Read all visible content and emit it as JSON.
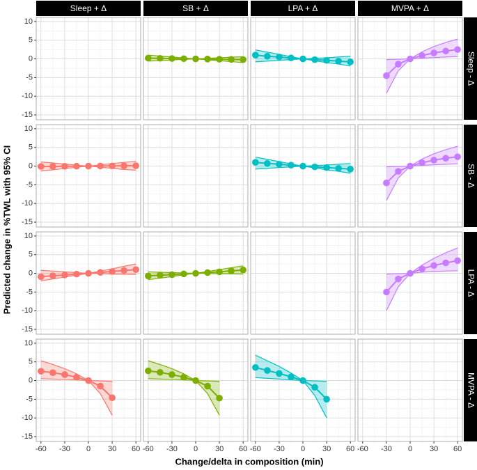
{
  "chart_data": {
    "type": "line",
    "xlabel": "Change/delta in composition (min)",
    "ylabel": "Predicted change in %TWL with 95% CI",
    "columns": [
      "Sleep + Δ",
      "SB + Δ",
      "LPA + Δ",
      "MVPA + Δ"
    ],
    "rows": [
      "Sleep - Δ",
      "SB - Δ",
      "LPA - Δ",
      "MVPA - Δ"
    ],
    "xlim": [
      -66,
      66
    ],
    "ylim": [
      -16.3,
      11.1
    ],
    "xticks": [
      -60,
      -30,
      0,
      30,
      60
    ],
    "yticks": [
      10,
      5,
      0,
      -5,
      -10,
      -15
    ],
    "grid": true,
    "panels": [
      null,
      {
        "color": "#7CAE00",
        "x": [
          -60,
          -45,
          -30,
          -15,
          0,
          15,
          30,
          45,
          60
        ],
        "values": [
          0.2,
          0.15,
          0.1,
          0.05,
          0,
          -0.05,
          -0.1,
          -0.15,
          -0.2
        ],
        "lower": [
          -0.6,
          -0.45,
          -0.3,
          -0.15,
          0,
          -0.25,
          -0.5,
          -0.75,
          -1.0
        ],
        "upper": [
          1.0,
          0.75,
          0.5,
          0.25,
          0,
          0.15,
          0.3,
          0.45,
          0.6
        ]
      },
      {
        "color": "#00BFC4",
        "x": [
          -60,
          -45,
          -30,
          -15,
          0,
          15,
          30,
          45,
          60
        ],
        "values": [
          1.0,
          0.7,
          0.5,
          0.25,
          0,
          -0.2,
          -0.4,
          -0.6,
          -0.8
        ],
        "lower": [
          -0.8,
          -0.6,
          -0.4,
          -0.2,
          0,
          -0.5,
          -1.0,
          -1.4,
          -1.9
        ],
        "upper": [
          2.4,
          1.8,
          1.2,
          0.6,
          0,
          0.15,
          0.3,
          0.5,
          0.7
        ]
      },
      {
        "color": "#C77CFF",
        "x": [
          -30,
          -15,
          0,
          15,
          30,
          45,
          60
        ],
        "values": [
          -4.5,
          -1.4,
          0,
          0.9,
          1.6,
          2.1,
          2.5
        ],
        "lower": [
          -9.2,
          -3.2,
          0,
          0.2,
          0.35,
          0.5,
          0.6
        ],
        "upper": [
          -0.2,
          -0.1,
          0,
          1.9,
          3.3,
          4.4,
          5.3
        ]
      },
      {
        "color": "#F8766D",
        "x": [
          -60,
          -45,
          -30,
          -15,
          0,
          15,
          30,
          45,
          60
        ],
        "values": [
          -0.1,
          -0.08,
          -0.05,
          -0.03,
          0,
          0.03,
          0.05,
          0.08,
          0.1
        ],
        "lower": [
          -1.3,
          -1.0,
          -0.65,
          -0.3,
          0,
          -0.3,
          -0.6,
          -0.9,
          -1.1
        ],
        "upper": [
          1.1,
          0.85,
          0.55,
          0.25,
          0,
          0.35,
          0.7,
          1.0,
          1.3
        ]
      },
      null,
      {
        "color": "#00BFC4",
        "x": [
          -60,
          -45,
          -30,
          -15,
          0,
          15,
          30,
          45,
          60
        ],
        "values": [
          1.0,
          0.7,
          0.5,
          0.25,
          0,
          -0.2,
          -0.4,
          -0.6,
          -0.8
        ],
        "lower": [
          -0.8,
          -0.6,
          -0.4,
          -0.2,
          0,
          -0.5,
          -1.0,
          -1.4,
          -1.9
        ],
        "upper": [
          2.4,
          1.8,
          1.2,
          0.6,
          0,
          0.15,
          0.3,
          0.5,
          0.7
        ]
      },
      {
        "color": "#C77CFF",
        "x": [
          -30,
          -15,
          0,
          15,
          30,
          45,
          60
        ],
        "values": [
          -4.5,
          -1.4,
          0,
          0.9,
          1.6,
          2.1,
          2.5
        ],
        "lower": [
          -9.2,
          -3.2,
          0,
          0.2,
          0.35,
          0.5,
          0.6
        ],
        "upper": [
          -0.2,
          -0.1,
          0,
          1.9,
          3.3,
          4.4,
          5.3
        ]
      },
      {
        "color": "#F8766D",
        "x": [
          -60,
          -45,
          -30,
          -15,
          0,
          15,
          30,
          45,
          60
        ],
        "values": [
          -0.9,
          -0.65,
          -0.45,
          -0.2,
          0,
          0.25,
          0.5,
          0.75,
          1.0
        ],
        "lower": [
          -2.0,
          -1.5,
          -1.0,
          -0.5,
          0,
          -0.1,
          -0.2,
          -0.25,
          -0.3
        ],
        "upper": [
          0.8,
          0.6,
          0.4,
          0.2,
          0,
          0.6,
          1.2,
          1.9,
          2.5
        ]
      },
      {
        "color": "#7CAE00",
        "x": [
          -60,
          -45,
          -30,
          -15,
          0,
          15,
          30,
          45,
          60
        ],
        "values": [
          -0.7,
          -0.5,
          -0.35,
          -0.15,
          0,
          0.2,
          0.4,
          0.65,
          0.9
        ],
        "lower": [
          -1.7,
          -1.3,
          -0.85,
          -0.4,
          0,
          -0.05,
          -0.1,
          -0.15,
          -0.2
        ],
        "upper": [
          0.4,
          0.3,
          0.2,
          0.1,
          0,
          0.5,
          1.0,
          1.5,
          2.0
        ]
      },
      null,
      {
        "color": "#C77CFF",
        "x": [
          -30,
          -15,
          0,
          15,
          30,
          45,
          60
        ],
        "values": [
          -5.0,
          -1.5,
          0,
          1.2,
          2.1,
          2.8,
          3.4
        ],
        "lower": [
          -10.0,
          -3.6,
          0,
          0.3,
          0.5,
          0.6,
          0.7
        ],
        "upper": [
          -0.2,
          -0.1,
          0,
          2.2,
          4.0,
          5.5,
          6.8
        ]
      },
      {
        "color": "#F8766D",
        "x": [
          -60,
          -45,
          -30,
          -15,
          0,
          15,
          30
        ],
        "values": [
          2.5,
          2.1,
          1.6,
          0.9,
          0,
          -1.5,
          -4.6
        ],
        "lower": [
          0.5,
          0.4,
          0.3,
          0.2,
          0,
          -3.5,
          -9.3
        ],
        "upper": [
          5.3,
          4.3,
          3.2,
          1.8,
          0,
          -0.1,
          -0.2
        ]
      },
      {
        "color": "#7CAE00",
        "x": [
          -60,
          -45,
          -30,
          -15,
          0,
          15,
          30
        ],
        "values": [
          2.6,
          2.2,
          1.6,
          0.9,
          0,
          -1.5,
          -4.7
        ],
        "lower": [
          0.5,
          0.4,
          0.3,
          0.2,
          0,
          -3.5,
          -9.3
        ],
        "upper": [
          5.3,
          4.3,
          3.2,
          1.8,
          0,
          -0.1,
          -0.2
        ]
      },
      {
        "color": "#00BFC4",
        "x": [
          -60,
          -45,
          -30,
          -15,
          0,
          15,
          30
        ],
        "values": [
          3.5,
          2.7,
          1.9,
          1.0,
          0,
          -1.8,
          -5.0
        ],
        "lower": [
          0.8,
          0.6,
          0.4,
          0.2,
          0,
          -4.0,
          -10.0
        ],
        "upper": [
          6.8,
          5.3,
          3.8,
          2.0,
          0,
          -0.1,
          -0.2
        ]
      },
      null
    ]
  }
}
